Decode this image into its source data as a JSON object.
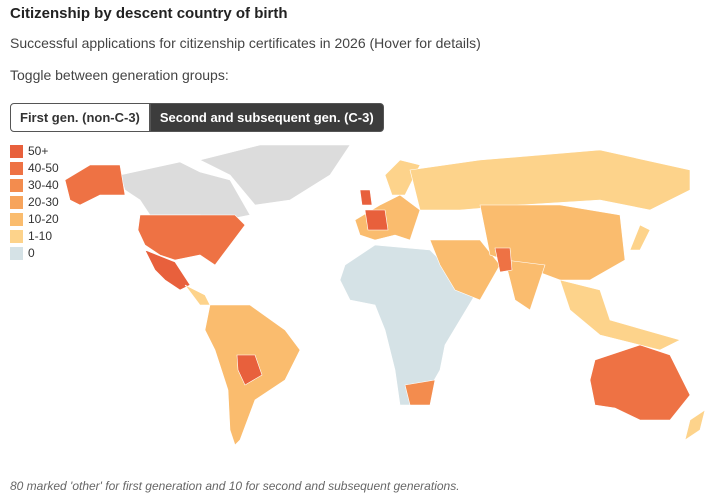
{
  "header": {
    "title": "Citizenship by descent country of birth",
    "subtitle": "Successful applications for citizenship certificates in 2026 (Hover for details)",
    "toggle_label": "Toggle between generation groups:"
  },
  "toggle": {
    "buttons": [
      "First gen. (non-C-3)",
      "Second and subsequent gen. (C-3)"
    ],
    "active": 1
  },
  "legend": {
    "items": [
      {
        "label": "50+",
        "color": "#e8603c"
      },
      {
        "label": "40-50",
        "color": "#ee7244"
      },
      {
        "label": "30-40",
        "color": "#f38c4e"
      },
      {
        "label": "20-30",
        "color": "#f7a45c"
      },
      {
        "label": "10-20",
        "color": "#fabc6e"
      },
      {
        "label": "1-10",
        "color": "#fdd38b"
      },
      {
        "label": "0",
        "color": "#d5e2e6"
      }
    ]
  },
  "footnote": "80 marked 'other' for first generation and 10 for second and subsequent generations."
}
